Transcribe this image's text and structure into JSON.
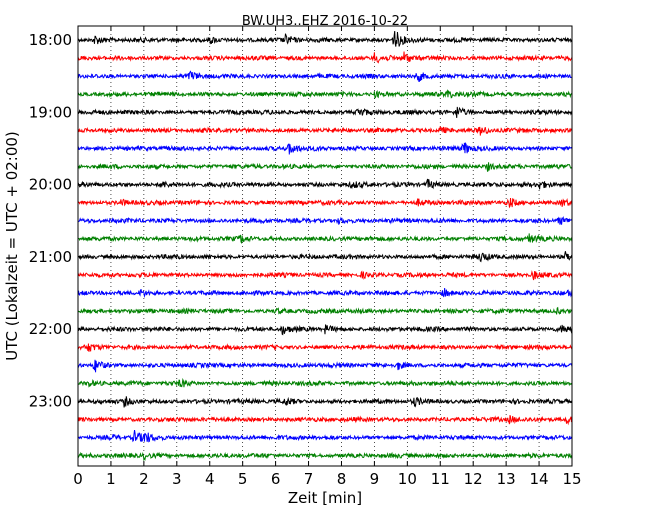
{
  "chart_data": {
    "type": "line",
    "title": "BW.UH3..EHZ 2016-10-22",
    "xlabel": "Zeit  [min]",
    "ylabel": "UTC (Lokalzeit = UTC + 02:00)",
    "xlim": [
      0,
      15
    ],
    "x_ticks": [
      0,
      1,
      2,
      3,
      4,
      5,
      6,
      7,
      8,
      9,
      10,
      11,
      12,
      13,
      14,
      15
    ],
    "grid": "vertical-dotted",
    "y_ticks": [
      {
        "label": "18:00",
        "row": 0
      },
      {
        "label": "19:00",
        "row": 4
      },
      {
        "label": "20:00",
        "row": 8
      },
      {
        "label": "21:00",
        "row": 12
      },
      {
        "label": "22:00",
        "row": 16
      },
      {
        "label": "23:00",
        "row": 20
      }
    ],
    "series_colors": [
      "#000000",
      "#ff0000",
      "#0000ff",
      "#008000"
    ],
    "traces": [
      {
        "start": "18:00",
        "color": "#000000",
        "events": [
          {
            "t": 0.5,
            "a": 0.6
          },
          {
            "t": 4.0,
            "a": 0.5
          },
          {
            "t": 6.3,
            "a": 0.6
          },
          {
            "t": 9.6,
            "a": 1.6
          }
        ]
      },
      {
        "start": "18:15",
        "color": "#ff0000",
        "events": [
          {
            "t": 9.0,
            "a": 0.7
          },
          {
            "t": 9.9,
            "a": 0.8
          }
        ]
      },
      {
        "start": "18:30",
        "color": "#0000ff",
        "events": [
          {
            "t": 3.4,
            "a": 0.6
          },
          {
            "t": 10.3,
            "a": 0.8
          }
        ]
      },
      {
        "start": "18:45",
        "color": "#008000",
        "events": [
          {
            "t": 9.0,
            "a": 0.4
          },
          {
            "t": 11.2,
            "a": 0.6
          }
        ]
      },
      {
        "start": "19:00",
        "color": "#000000",
        "events": [
          {
            "t": 8.5,
            "a": 0.7
          },
          {
            "t": 11.5,
            "a": 0.8
          }
        ]
      },
      {
        "start": "19:15",
        "color": "#ff0000",
        "events": [
          {
            "t": 11.0,
            "a": 0.5
          },
          {
            "t": 12.2,
            "a": 0.6
          }
        ]
      },
      {
        "start": "19:30",
        "color": "#0000ff",
        "events": [
          {
            "t": 6.4,
            "a": 1.0
          },
          {
            "t": 11.7,
            "a": 0.9
          }
        ]
      },
      {
        "start": "19:45",
        "color": "#008000",
        "events": [
          {
            "t": 12.4,
            "a": 0.6
          }
        ]
      },
      {
        "start": "20:00",
        "color": "#000000",
        "events": [
          {
            "t": 2.5,
            "a": 0.5
          },
          {
            "t": 8.3,
            "a": 0.4
          },
          {
            "t": 10.6,
            "a": 0.7
          },
          {
            "t": 14.0,
            "a": 0.5
          }
        ]
      },
      {
        "start": "20:15",
        "color": "#ff0000",
        "events": [
          {
            "t": 1.3,
            "a": 0.4
          },
          {
            "t": 10.3,
            "a": 0.4
          },
          {
            "t": 13.1,
            "a": 0.6
          },
          {
            "t": 14.7,
            "a": 0.5
          }
        ]
      },
      {
        "start": "20:30",
        "color": "#0000ff",
        "events": [
          {
            "t": 7.9,
            "a": 0.4
          },
          {
            "t": 14.6,
            "a": 0.5
          }
        ]
      },
      {
        "start": "20:45",
        "color": "#008000",
        "events": [
          {
            "t": 4.9,
            "a": 0.5
          },
          {
            "t": 13.7,
            "a": 0.6
          }
        ]
      },
      {
        "start": "21:00",
        "color": "#000000",
        "events": [
          {
            "t": 12.2,
            "a": 0.6
          },
          {
            "t": 14.8,
            "a": 0.6
          }
        ]
      },
      {
        "start": "21:15",
        "color": "#ff0000",
        "events": [
          {
            "t": 8.6,
            "a": 0.4
          },
          {
            "t": 13.8,
            "a": 0.6
          }
        ]
      },
      {
        "start": "21:30",
        "color": "#0000ff",
        "events": [
          {
            "t": 1.9,
            "a": 0.5
          },
          {
            "t": 11.1,
            "a": 0.6
          },
          {
            "t": 14.9,
            "a": 0.5
          }
        ]
      },
      {
        "start": "21:45",
        "color": "#008000",
        "events": [
          {
            "t": 6.0,
            "a": 0.3
          },
          {
            "t": 14.5,
            "a": 0.4
          }
        ]
      },
      {
        "start": "22:00",
        "color": "#000000",
        "events": [
          {
            "t": 6.2,
            "a": 0.6
          },
          {
            "t": 7.5,
            "a": 0.5
          },
          {
            "t": 14.7,
            "a": 0.5
          }
        ]
      },
      {
        "start": "22:15",
        "color": "#ff0000",
        "events": [
          {
            "t": 0.3,
            "a": 0.5
          }
        ]
      },
      {
        "start": "22:30",
        "color": "#0000ff",
        "events": [
          {
            "t": 0.5,
            "a": 1.0
          },
          {
            "t": 9.7,
            "a": 0.6
          }
        ]
      },
      {
        "start": "22:45",
        "color": "#008000",
        "events": [
          {
            "t": 0.3,
            "a": 0.4
          },
          {
            "t": 3.1,
            "a": 0.5
          }
        ]
      },
      {
        "start": "23:00",
        "color": "#000000",
        "events": [
          {
            "t": 1.4,
            "a": 0.7
          },
          {
            "t": 6.3,
            "a": 0.5
          },
          {
            "t": 10.2,
            "a": 0.5
          }
        ]
      },
      {
        "start": "23:15",
        "color": "#ff0000",
        "events": [
          {
            "t": 13.1,
            "a": 0.5
          },
          {
            "t": 14.8,
            "a": 0.6
          }
        ]
      },
      {
        "start": "23:30",
        "color": "#0000ff",
        "events": [
          {
            "t": 1.0,
            "a": 0.3
          },
          {
            "t": 1.7,
            "a": 0.9
          },
          {
            "t": 2.0,
            "a": 0.7
          }
        ]
      },
      {
        "start": "23:45",
        "color": "#008000",
        "events": [
          {
            "t": 2.0,
            "a": 0.4
          }
        ]
      }
    ]
  }
}
